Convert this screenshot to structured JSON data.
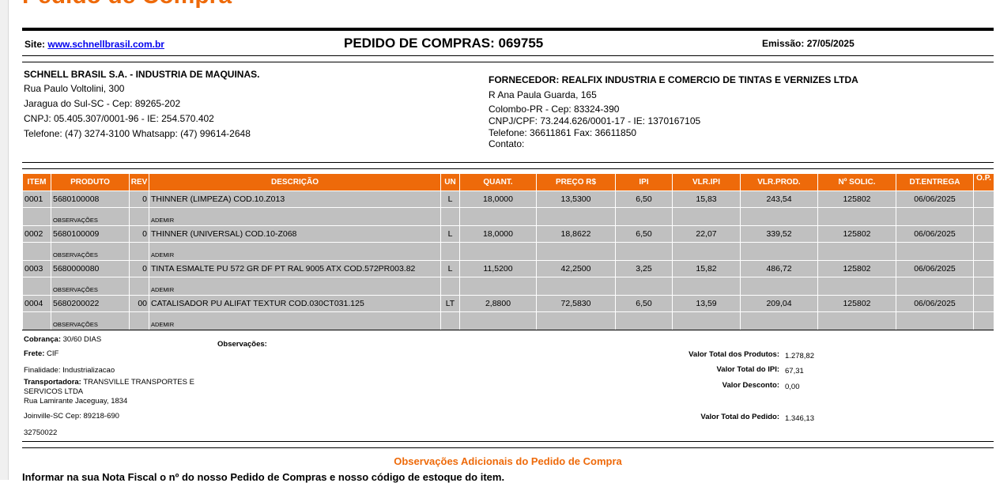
{
  "title": "Pedido de Compra",
  "header": {
    "site_label": "Site:",
    "site_url": "www.schnellbrasil.com.br",
    "order_title": "PEDIDO DE COMPRAS: 069755",
    "emission": "Emissão: 27/05/2025"
  },
  "buyer": {
    "name": "SCHNELL BRASIL S.A. - INDUSTRIA DE MAQUINAS.",
    "address": "Rua Paulo Voltolini, 300",
    "city": "Jaragua do Sul-SC - Cep: 89265-202",
    "ids": "CNPJ: 05.405.307/0001-96 - IE: 254.570.402",
    "phones": "Telefone: (47) 3274-3100   Whatsapp: (47) 99614-2648"
  },
  "supplier": {
    "name": "FORNECEDOR: REALFIX INDUSTRIA E COMERCIO DE TINTAS E VERNIZES LTDA",
    "address": "R Ana Paula Guarda, 165",
    "city": "Colombo-PR - Cep: 83324-390",
    "ids": "CNPJ/CPF: 73.244.626/0001-17 - IE: 1370167105",
    "phones": "Telefone: 36611861 Fax: 36611850",
    "contact": "Contato:"
  },
  "table": {
    "columns": [
      "ITEM",
      "PRODUTO",
      "REV",
      "DESCRIÇÃO",
      "UN",
      "QUANT.",
      "PREÇO R$",
      "IPI",
      "VLR.IPI",
      "VLR.PROD.",
      "Nº SOLIC.",
      "DT.ENTREGA",
      "O.P."
    ],
    "obs_label": "OBSERVAÇÕES",
    "rows": [
      {
        "item": "0001",
        "produto": "5680100008",
        "rev": "0",
        "descricao": "THINNER (LIMPEZA) COD.10.Z013",
        "un": "L",
        "quant": "18,0000",
        "preco": "13,5300",
        "ipi": "6,50",
        "vlr_ipi": "15,83",
        "vlr_prod": "243,54",
        "solic": "125802",
        "entrega": "06/06/2025",
        "op": "",
        "obs": "ADEMIR"
      },
      {
        "item": "0002",
        "produto": "5680100009",
        "rev": "0",
        "descricao": "THINNER (UNIVERSAL) COD.10-Z068",
        "un": "L",
        "quant": "18,0000",
        "preco": "18,8622",
        "ipi": "6,50",
        "vlr_ipi": "22,07",
        "vlr_prod": "339,52",
        "solic": "125802",
        "entrega": "06/06/2025",
        "op": "",
        "obs": "ADEMIR"
      },
      {
        "item": "0003",
        "produto": "5680000080",
        "rev": "0",
        "descricao": "TINTA ESMALTE PU 572 GR DF PT RAL 9005 ATX COD.572PR003.82",
        "un": "L",
        "quant": "11,5200",
        "preco": "42,2500",
        "ipi": "3,25",
        "vlr_ipi": "15,82",
        "vlr_prod": "486,72",
        "solic": "125802",
        "entrega": "06/06/2025",
        "op": "",
        "obs": "ADEMIR"
      },
      {
        "item": "0004",
        "produto": "5680200022",
        "rev": "00",
        "descricao": "CATALISADOR PU ALIFAT TEXTUR COD.030CT031.125",
        "un": "LT",
        "quant": "2,8800",
        "preco": "72,5830",
        "ipi": "6,50",
        "vlr_ipi": "13,59",
        "vlr_prod": "209,04",
        "solic": "125802",
        "entrega": "06/06/2025",
        "op": "",
        "obs": "ADEMIR"
      }
    ]
  },
  "footer": {
    "cobranca_label": "Cobrança:",
    "cobranca": "30/60 DIAS",
    "frete_label": "Frete:",
    "frete": "CIF",
    "finalidade": "Finalidade: Industrializacao",
    "transp_label": "Transportadora:",
    "transp": "TRANSVILLE TRANSPORTES E",
    "transp2": "SERVICOS LTDA",
    "transp_address": "Rua Lamirante Jaceguay, 1834",
    "transp_city": "Joinville-SC Cep: 89218-690",
    "transp_code": "32750022",
    "obs_label": "Observações:",
    "totals": [
      {
        "label": "Valor Total dos Produtos:",
        "value": "1.278,82"
      },
      {
        "label": "Valor Total do IPI:",
        "value": "67,31"
      },
      {
        "label": "Valor Desconto:",
        "value": "0,00"
      },
      {
        "label": "Valor Total do Pedido:",
        "value": "1.346,13"
      }
    ]
  },
  "additional": {
    "title": "Observações Adicionais do Pedido de Compra",
    "text": "Informar na sua Nota Fiscal o nº do nosso Pedido de Compras e nosso código de estoque do item."
  }
}
